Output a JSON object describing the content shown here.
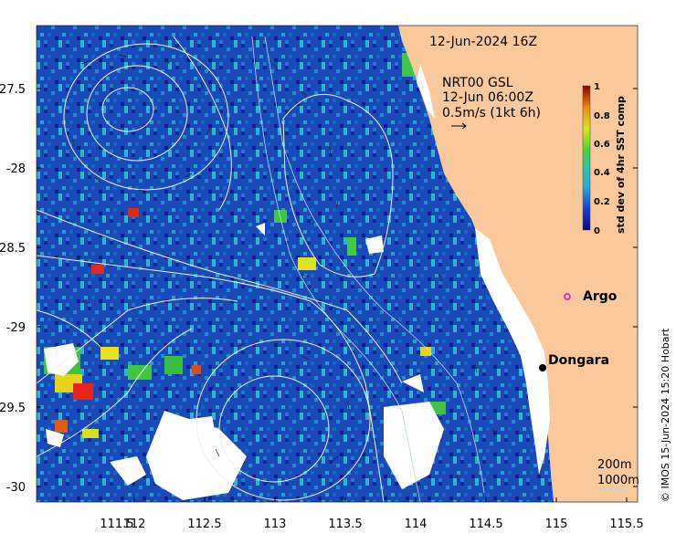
{
  "map": {
    "date_label": "12-Jun-2024 16Z",
    "legend_product": "NRT00 GSL",
    "legend_time": "12-Jun 06:00Z",
    "legend_scale": "0.5m/s (1kt 6h)",
    "colorbar": {
      "label": "std dev of 4hr SST comp",
      "ticks": [
        "1",
        "0.8",
        "0.6",
        "0.4",
        "0.2",
        "0"
      ]
    },
    "x_ticks": [
      "111.5",
      "112",
      "112.5",
      "113",
      "113.5",
      "114",
      "114.5",
      "115",
      "115.5"
    ],
    "y_ticks": [
      "-27.5",
      "-28",
      "-28.5",
      "-29",
      "-29.5",
      "-30"
    ],
    "places": [
      {
        "name": "Argo"
      },
      {
        "name": "Dongara"
      }
    ],
    "depth_labels": [
      "200m",
      "1000m"
    ],
    "credit": "© IMOS 15-Jun-2024 15:20 Hobart",
    "colors": {
      "land": "#f9c99c",
      "cloud_gap": "#ffffff",
      "low": "#0a1a8f",
      "mid": "#1fa3c9",
      "green": "#35c24a",
      "high": "#e81e10",
      "argo": "#e000e0"
    }
  }
}
